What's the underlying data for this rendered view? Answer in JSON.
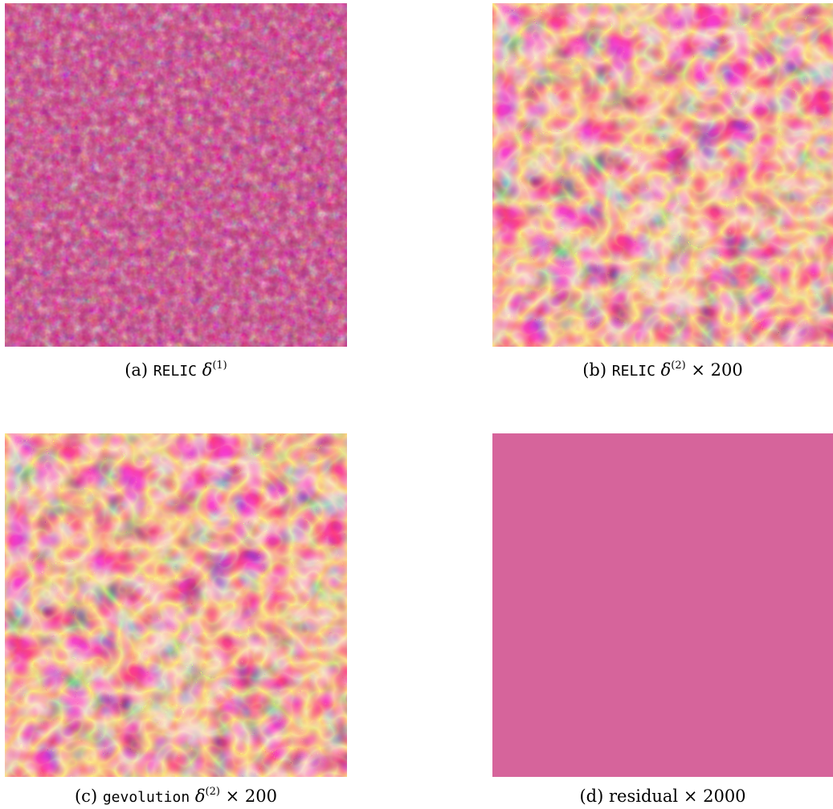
{
  "figure": {
    "panels": [
      {
        "id": "a",
        "caption": {
          "prefix": "(a)",
          "code": "RELIC",
          "symbol": "δ",
          "sup": "(1)",
          "suffix": ""
        },
        "colormap": "plasma",
        "texture": "fine-noise"
      },
      {
        "id": "b",
        "caption": {
          "prefix": "(b)",
          "code": "RELIC",
          "symbol": "δ",
          "sup": "(2)",
          "suffix": "× 200"
        },
        "colormap": "plasma",
        "texture": "smooth-blobs"
      },
      {
        "id": "c",
        "caption": {
          "prefix": "(c)",
          "code": "gevolution",
          "symbol": "δ",
          "sup": "(2)",
          "suffix": "× 200"
        },
        "colormap": "plasma",
        "texture": "smooth-blobs"
      },
      {
        "id": "d",
        "caption": {
          "prefix": "(d)",
          "code": "",
          "symbol": "",
          "sup": "",
          "suffix": "residual × 2000"
        },
        "colormap": "plasma",
        "background_color": "#c63c7a",
        "texture": "sparse-speckle"
      }
    ]
  }
}
